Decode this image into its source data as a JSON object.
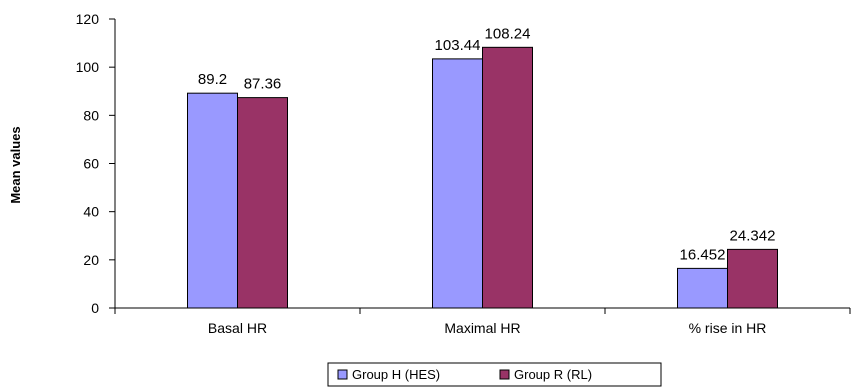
{
  "chart_data": {
    "type": "bar",
    "title": "",
    "xlabel": "",
    "ylabel": "Mean values",
    "ylim": [
      0,
      120
    ],
    "yticks": [
      0,
      20,
      40,
      60,
      80,
      100,
      120
    ],
    "categories": [
      "Basal HR",
      "Maximal HR",
      "% rise in HR"
    ],
    "series": [
      {
        "name": "Group H (HES)",
        "color": "#9999ff",
        "values": [
          89.2,
          103.44,
          16.452
        ],
        "labels": [
          "89.2",
          "103.44",
          "16.452"
        ]
      },
      {
        "name": "Group R (RL)",
        "color": "#993366",
        "values": [
          87.36,
          108.24,
          24.342
        ],
        "labels": [
          "87.36",
          "108.24",
          "24.342"
        ]
      }
    ],
    "grid": false,
    "legend_position": "bottom"
  }
}
